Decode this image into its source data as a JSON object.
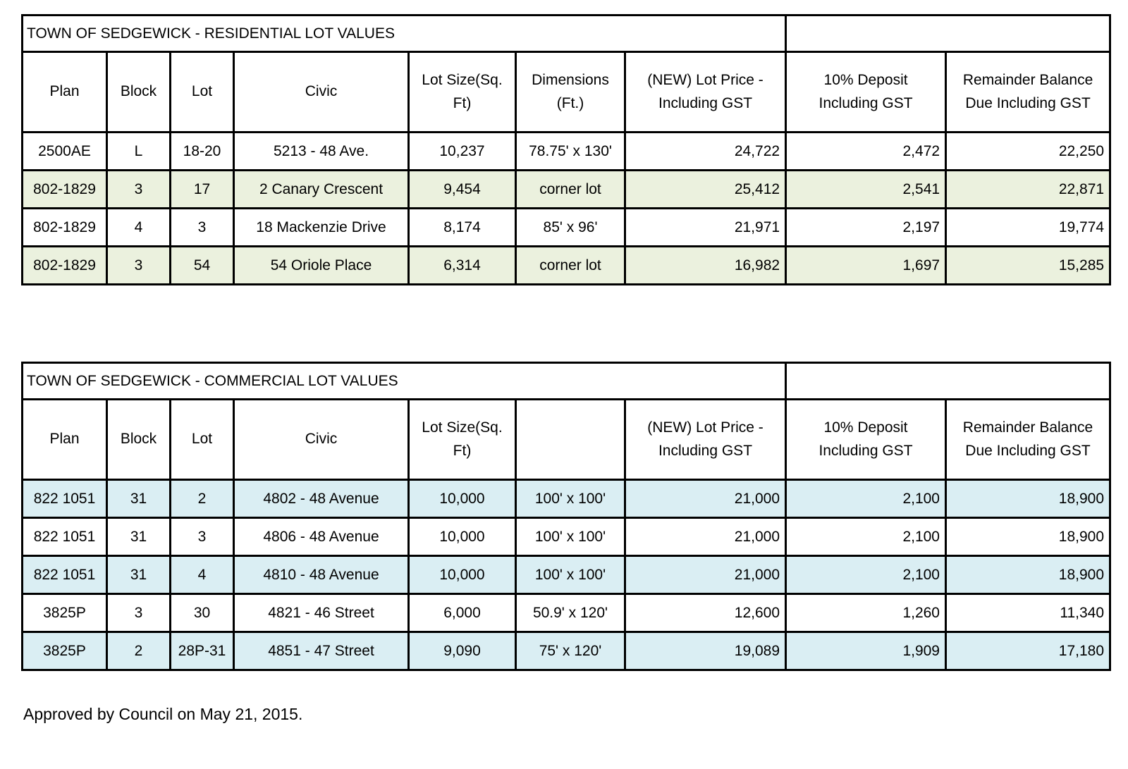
{
  "residential": {
    "title": "TOWN OF SEDGEWICK - RESIDENTIAL LOT VALUES",
    "highlight_color": "#EBF1DE",
    "columns": [
      "Plan",
      "Block",
      "Lot",
      "Civic",
      "Lot Size(Sq. Ft)",
      "Dimensions (Ft.)",
      "(NEW) Lot Price - Including GST",
      "10% Deposit Including GST",
      "Remainder Balance Due Including GST"
    ],
    "rows": [
      {
        "highlighted": false,
        "cells": [
          "2500AE",
          "L",
          "18-20",
          "5213 - 48 Ave.",
          "10,237",
          "78.75' x 130'",
          "24,722",
          "2,472",
          "22,250"
        ]
      },
      {
        "highlighted": true,
        "cells": [
          "802-1829",
          "3",
          "17",
          "2 Canary Crescent",
          "9,454",
          "corner lot",
          "25,412",
          "2,541",
          "22,871"
        ]
      },
      {
        "highlighted": false,
        "cells": [
          "802-1829",
          "4",
          "3",
          "18 Mackenzie Drive",
          "8,174",
          "85' x 96'",
          "21,971",
          "2,197",
          "19,774"
        ]
      },
      {
        "highlighted": true,
        "cells": [
          "802-1829",
          "3",
          "54",
          "54 Oriole Place",
          "6,314",
          "corner lot",
          "16,982",
          "1,697",
          "15,285"
        ]
      }
    ]
  },
  "commercial": {
    "title": "TOWN OF SEDGEWICK - COMMERCIAL LOT VALUES",
    "highlight_color": "#DAEEF3",
    "columns": [
      "Plan",
      "Block",
      "Lot",
      "Civic",
      "Lot Size(Sq. Ft)",
      "",
      "(NEW) Lot Price - Including GST",
      "10% Deposit Including GST",
      "Remainder Balance Due Including GST"
    ],
    "rows": [
      {
        "highlighted": true,
        "cells": [
          "822 1051",
          "31",
          "2",
          "4802 - 48 Avenue",
          "10,000",
          "100' x 100'",
          "21,000",
          "2,100",
          "18,900"
        ]
      },
      {
        "highlighted": false,
        "cells": [
          "822 1051",
          "31",
          "3",
          "4806 - 48 Avenue",
          "10,000",
          "100' x 100'",
          "21,000",
          "2,100",
          "18,900"
        ]
      },
      {
        "highlighted": true,
        "cells": [
          "822 1051",
          "31",
          "4",
          "4810 - 48 Avenue",
          "10,000",
          "100' x 100'",
          "21,000",
          "2,100",
          "18,900"
        ]
      },
      {
        "highlighted": false,
        "cells": [
          "3825P",
          "3",
          "30",
          "4821 - 46 Street",
          "6,000",
          "50.9' x 120'",
          "12,600",
          "1,260",
          "11,340"
        ]
      },
      {
        "highlighted": true,
        "cells": [
          "3825P",
          "2",
          "28P-31",
          "4851 - 47 Street",
          "9,090",
          "75' x 120'",
          "19,089",
          "1,909",
          "17,180"
        ]
      }
    ]
  },
  "footer": {
    "note": "Approved by Council on May 21, 2015."
  }
}
